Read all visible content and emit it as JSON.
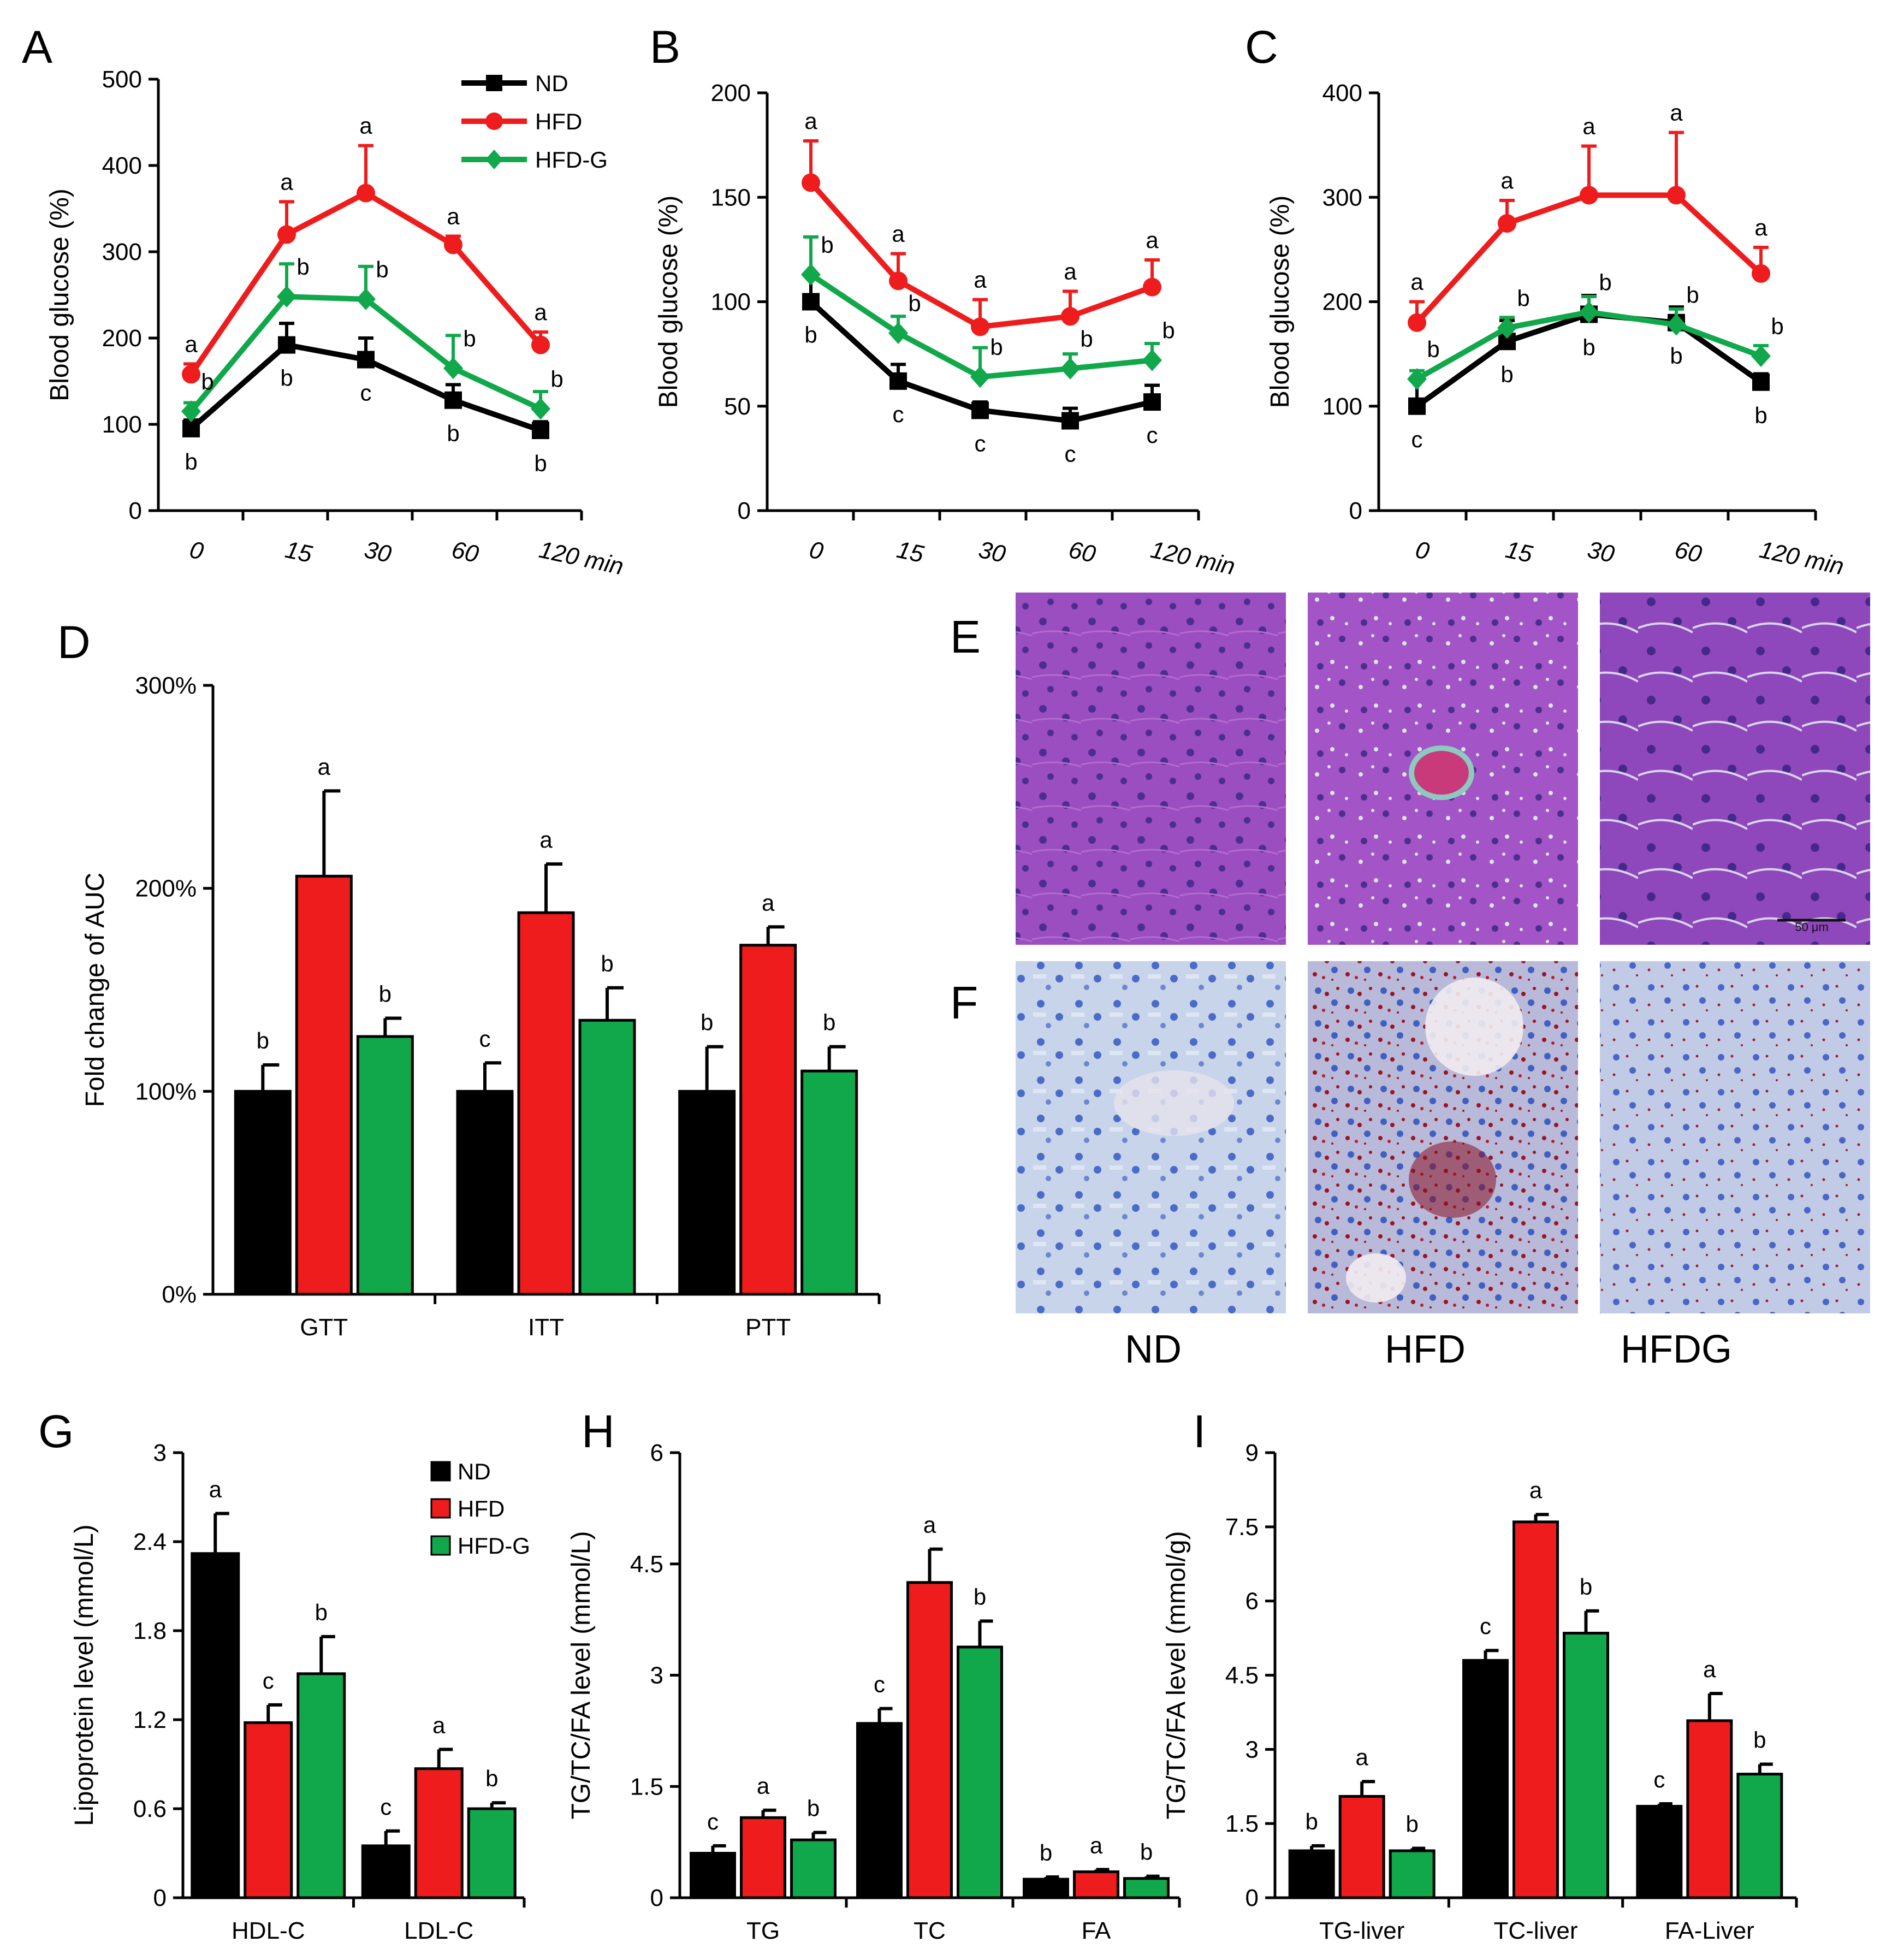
{
  "colors": {
    "ND": "#000000",
    "HFD": "#ee1c1c",
    "HFD-G": "#10a84a"
  },
  "chart_data": [
    {
      "type": "line",
      "panel": "A",
      "ylabel": "Blood glucose (%)",
      "x": [
        "0",
        "15",
        "30",
        "60",
        "120 min"
      ],
      "ylim": [
        0,
        500
      ],
      "yticks": [
        "0",
        "100",
        "200",
        "300",
        "400",
        "500"
      ],
      "legend": [
        "ND",
        "HFD",
        "HFD-G"
      ],
      "series": [
        {
          "name": "ND",
          "values": [
            95,
            192,
            175,
            128,
            93
          ],
          "errors": [
            10,
            25,
            25,
            18,
            10
          ],
          "sig": [
            "b",
            "b",
            "c",
            "b",
            "b"
          ]
        },
        {
          "name": "HFD",
          "values": [
            158,
            320,
            368,
            308,
            192
          ],
          "errors": [
            12,
            38,
            55,
            10,
            15
          ],
          "sig": [
            "a",
            "a",
            "a",
            "a",
            "a"
          ]
        },
        {
          "name": "HFD-G",
          "values": [
            115,
            248,
            245,
            165,
            118
          ],
          "errors": [
            10,
            38,
            38,
            38,
            20
          ],
          "sig": [
            "b",
            "b",
            "b",
            "b",
            "b"
          ]
        }
      ]
    },
    {
      "type": "line",
      "panel": "B",
      "ylabel": "Blood glucose (%)",
      "x": [
        "0",
        "15",
        "30",
        "60",
        "120 min"
      ],
      "ylim": [
        0,
        200
      ],
      "yticks": [
        "0",
        "50",
        "100",
        "150",
        "200"
      ],
      "series": [
        {
          "name": "ND",
          "values": [
            100,
            62,
            48,
            43,
            52
          ],
          "errors": [
            13,
            8,
            4,
            6,
            8
          ],
          "sig": [
            "b",
            "c",
            "c",
            "c",
            "c"
          ]
        },
        {
          "name": "HFD",
          "values": [
            157,
            110,
            88,
            93,
            107
          ],
          "errors": [
            20,
            13,
            13,
            12,
            13
          ],
          "sig": [
            "a",
            "a",
            "a",
            "a",
            "a"
          ]
        },
        {
          "name": "HFD-G",
          "values": [
            113,
            85,
            64,
            68,
            72
          ],
          "errors": [
            18,
            8,
            14,
            7,
            8
          ],
          "sig": [
            "b",
            "b",
            "b",
            "b",
            "b"
          ]
        }
      ]
    },
    {
      "type": "line",
      "panel": "C",
      "ylabel": "Blood glucose (%)",
      "x": [
        "0",
        "15",
        "30",
        "60",
        "120 min"
      ],
      "ylim": [
        0,
        400
      ],
      "yticks": [
        "0",
        "100",
        "200",
        "300",
        "400"
      ],
      "series": [
        {
          "name": "ND",
          "values": [
            100,
            162,
            188,
            180,
            123
          ],
          "errors": [
            25,
            20,
            18,
            15,
            8
          ],
          "sig": [
            "c",
            "b",
            "b",
            "b",
            "b"
          ]
        },
        {
          "name": "HFD",
          "values": [
            180,
            275,
            302,
            302,
            227
          ],
          "errors": [
            20,
            22,
            47,
            60,
            25
          ],
          "sig": [
            "a",
            "a",
            "a",
            "a",
            "a"
          ]
        },
        {
          "name": "HFD-G",
          "values": [
            126,
            175,
            190,
            178,
            148
          ],
          "errors": [
            8,
            10,
            15,
            15,
            10
          ],
          "sig": [
            "b",
            "b",
            "b",
            "b",
            "b"
          ]
        }
      ]
    },
    {
      "type": "bar",
      "panel": "D",
      "ylabel": "Fold change of AUC",
      "categories": [
        "GTT",
        "ITT",
        "PTT"
      ],
      "ylim": [
        0,
        300
      ],
      "yticks": [
        "0%",
        "100%",
        "200%",
        "300%"
      ],
      "series": [
        {
          "name": "ND",
          "values": [
            100,
            100,
            100
          ],
          "errors": [
            13,
            14,
            22
          ],
          "sig": [
            "b",
            "c",
            "b"
          ]
        },
        {
          "name": "HFD",
          "values": [
            206,
            188,
            172
          ],
          "errors": [
            42,
            24,
            9
          ],
          "sig": [
            "a",
            "a",
            "a"
          ]
        },
        {
          "name": "HFD-G",
          "values": [
            127,
            135,
            110
          ],
          "errors": [
            9,
            16,
            12
          ],
          "sig": [
            "b",
            "b",
            "b"
          ]
        }
      ]
    },
    {
      "type": "bar",
      "panel": "G",
      "ylabel": "Lipoprotein level (mmol/L)",
      "categories": [
        "HDL-C",
        "LDL-C"
      ],
      "ylim": [
        0,
        3
      ],
      "yticks": [
        "0",
        "0.6",
        "1.2",
        "1.8",
        "2.4",
        "3"
      ],
      "legend": [
        "ND",
        "HFD",
        "HFD-G"
      ],
      "series": [
        {
          "name": "ND",
          "values": [
            2.32,
            0.35
          ],
          "errors": [
            0.27,
            0.1
          ],
          "sig": [
            "a",
            "c"
          ]
        },
        {
          "name": "HFD",
          "values": [
            1.18,
            0.87
          ],
          "errors": [
            0.12,
            0.13
          ],
          "sig": [
            "c",
            "a"
          ]
        },
        {
          "name": "HFD-G",
          "values": [
            1.51,
            0.6
          ],
          "errors": [
            0.25,
            0.04
          ],
          "sig": [
            "b",
            "b"
          ]
        }
      ]
    },
    {
      "type": "bar",
      "panel": "H",
      "ylabel": "TG/TC/FA level (mmol/L)",
      "categories": [
        "TG",
        "TC",
        "FA"
      ],
      "ylim": [
        0,
        6
      ],
      "yticks": [
        "0",
        "1.5",
        "3",
        "4.5",
        "6"
      ],
      "series": [
        {
          "name": "ND",
          "values": [
            0.6,
            2.35,
            0.25
          ],
          "errors": [
            0.1,
            0.2,
            0.03
          ],
          "sig": [
            "c",
            "c",
            "b"
          ]
        },
        {
          "name": "HFD",
          "values": [
            1.08,
            4.25,
            0.35
          ],
          "errors": [
            0.1,
            0.45,
            0.03
          ],
          "sig": [
            "a",
            "a",
            "a"
          ]
        },
        {
          "name": "HFD-G",
          "values": [
            0.78,
            3.38,
            0.26
          ],
          "errors": [
            0.1,
            0.35,
            0.03
          ],
          "sig": [
            "b",
            "b",
            "b"
          ]
        }
      ]
    },
    {
      "type": "bar",
      "panel": "I",
      "ylabel": "TG/TC/FA level (mmol/g)",
      "categories": [
        "TG-liver",
        "TC-liver",
        "FA-Liver"
      ],
      "ylim": [
        0,
        9
      ],
      "yticks": [
        "0",
        "1.5",
        "3",
        "4.5",
        "6",
        "7.5",
        "9"
      ],
      "series": [
        {
          "name": "ND",
          "values": [
            0.95,
            4.8,
            1.85
          ],
          "errors": [
            0.1,
            0.2,
            0.05
          ],
          "sig": [
            "b",
            "c",
            "c"
          ]
        },
        {
          "name": "HFD",
          "values": [
            2.05,
            7.6,
            3.58
          ],
          "errors": [
            0.3,
            0.15,
            0.55
          ],
          "sig": [
            "a",
            "a",
            "a"
          ]
        },
        {
          "name": "HFD-G",
          "values": [
            0.95,
            5.35,
            2.5
          ],
          "errors": [
            0.05,
            0.45,
            0.2
          ],
          "sig": [
            "b",
            "b",
            "b"
          ]
        }
      ]
    }
  ],
  "micrographs": {
    "columns": [
      "ND",
      "HFD",
      "HFDG"
    ],
    "rows": [
      "E",
      "F"
    ],
    "scale_bar_text": "50 μm"
  }
}
